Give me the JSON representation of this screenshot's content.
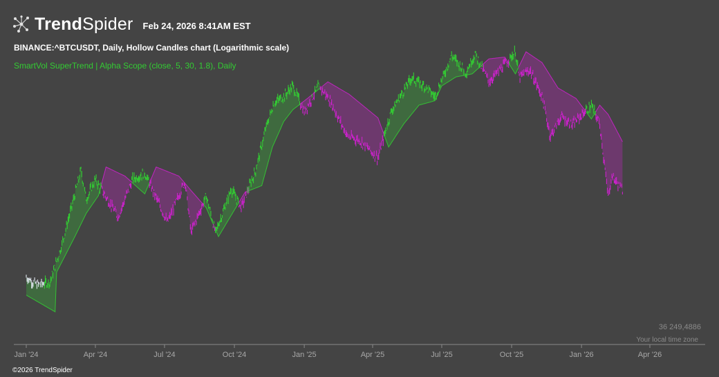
{
  "header": {
    "brand_bold": "Trend",
    "brand_light": "Spider",
    "timestamp": "Feb 24, 2026 8:41AM EST"
  },
  "title": "BINANCE:^BTCUSDT, Daily, Hollow Candles chart (Logarithmic scale)",
  "indicator": "SmartVol SuperTrend | Alpha Scope (close, 5, 30, 1.8), Daily",
  "price_label": "36 249,4886",
  "tz_label": "Your local time zone",
  "copyright": "©2026 TrendSpider",
  "colors": {
    "bull": "#33cc33",
    "bear": "#cc22cc",
    "background": "#444444"
  },
  "chart_data": {
    "type": "line",
    "scale": "log",
    "x_ticks": [
      "Jan '24",
      "Apr '24",
      "Jul '24",
      "Oct '24",
      "Jan '25",
      "Apr '25",
      "Jul '25",
      "Oct '25",
      "Jan '26",
      "Apr '26"
    ],
    "grid": false,
    "series": [
      {
        "role": "price",
        "x": [
          "2024-01-01",
          "2024-01-15",
          "2024-02-01",
          "2024-02-15",
          "2024-03-01",
          "2024-03-13",
          "2024-03-20",
          "2024-04-01",
          "2024-04-15",
          "2024-05-01",
          "2024-05-20",
          "2024-06-05",
          "2024-06-25",
          "2024-07-05",
          "2024-07-28",
          "2024-08-05",
          "2024-08-25",
          "2024-09-06",
          "2024-09-27",
          "2024-10-10",
          "2024-10-29",
          "2024-11-12",
          "2024-11-22",
          "2024-12-05",
          "2024-12-17",
          "2025-01-01",
          "2025-01-20",
          "2025-02-03",
          "2025-02-27",
          "2025-03-15",
          "2025-04-08",
          "2025-04-25",
          "2025-05-22",
          "2025-06-10",
          "2025-06-22",
          "2025-07-14",
          "2025-08-02",
          "2025-08-14",
          "2025-09-01",
          "2025-09-20",
          "2025-10-06",
          "2025-10-11",
          "2025-10-25",
          "2025-11-10",
          "2025-11-21",
          "2025-12-05",
          "2025-12-20",
          "2026-01-05",
          "2026-01-14",
          "2026-01-25",
          "2026-02-05",
          "2026-02-10",
          "2026-02-24"
        ],
        "values": [
          44000,
          42500,
          43000,
          50000,
          61000,
          72000,
          63000,
          69000,
          63500,
          58000,
          69000,
          71000,
          61000,
          56500,
          68500,
          54000,
          64000,
          54000,
          66000,
          60500,
          72000,
          88000,
          98000,
          101000,
          106000,
          94000,
          106000,
          99500,
          84000,
          82500,
          76000,
          94000,
          110000,
          105500,
          101000,
          122000,
          113000,
          123000,
          108000,
          116000,
          124000,
          110000,
          114000,
          101000,
          84000,
          92000,
          88500,
          94000,
          97000,
          89000,
          63500,
          70000,
          65500
        ]
      },
      {
        "role": "supertrend",
        "x": [
          "2024-01-01",
          "2024-02-08",
          "2024-02-10",
          "2024-03-05",
          "2024-03-20",
          "2024-04-05",
          "2024-04-15",
          "2024-05-10",
          "2024-06-05",
          "2024-06-20",
          "2024-07-20",
          "2024-08-05",
          "2024-08-25",
          "2024-09-10",
          "2024-09-27",
          "2024-10-15",
          "2024-11-06",
          "2024-11-20",
          "2024-12-05",
          "2024-12-17",
          "2025-01-05",
          "2025-02-01",
          "2025-03-01",
          "2025-04-08",
          "2025-04-22",
          "2025-05-12",
          "2025-06-01",
          "2025-06-22",
          "2025-07-01",
          "2025-07-20",
          "2025-08-10",
          "2025-09-01",
          "2025-09-22",
          "2025-10-06",
          "2025-10-20",
          "2025-11-10",
          "2025-12-01",
          "2025-12-25",
          "2026-01-14",
          "2026-01-25",
          "2026-02-05",
          "2026-02-24"
        ],
        "values": [
          40500,
          37500,
          45000,
          53000,
          59000,
          64000,
          73000,
          70000,
          64500,
          73000,
          70000,
          65500,
          60500,
          53000,
          58500,
          65000,
          67000,
          80000,
          90000,
          95000,
          100000,
          108000,
          102000,
          91500,
          80000,
          89000,
          97000,
          99000,
          106000,
          110500,
          112000,
          120000,
          121000,
          112000,
          124000,
          118000,
          105000,
          100000,
          91000,
          97000,
          93000,
          82000
        ]
      }
    ]
  }
}
